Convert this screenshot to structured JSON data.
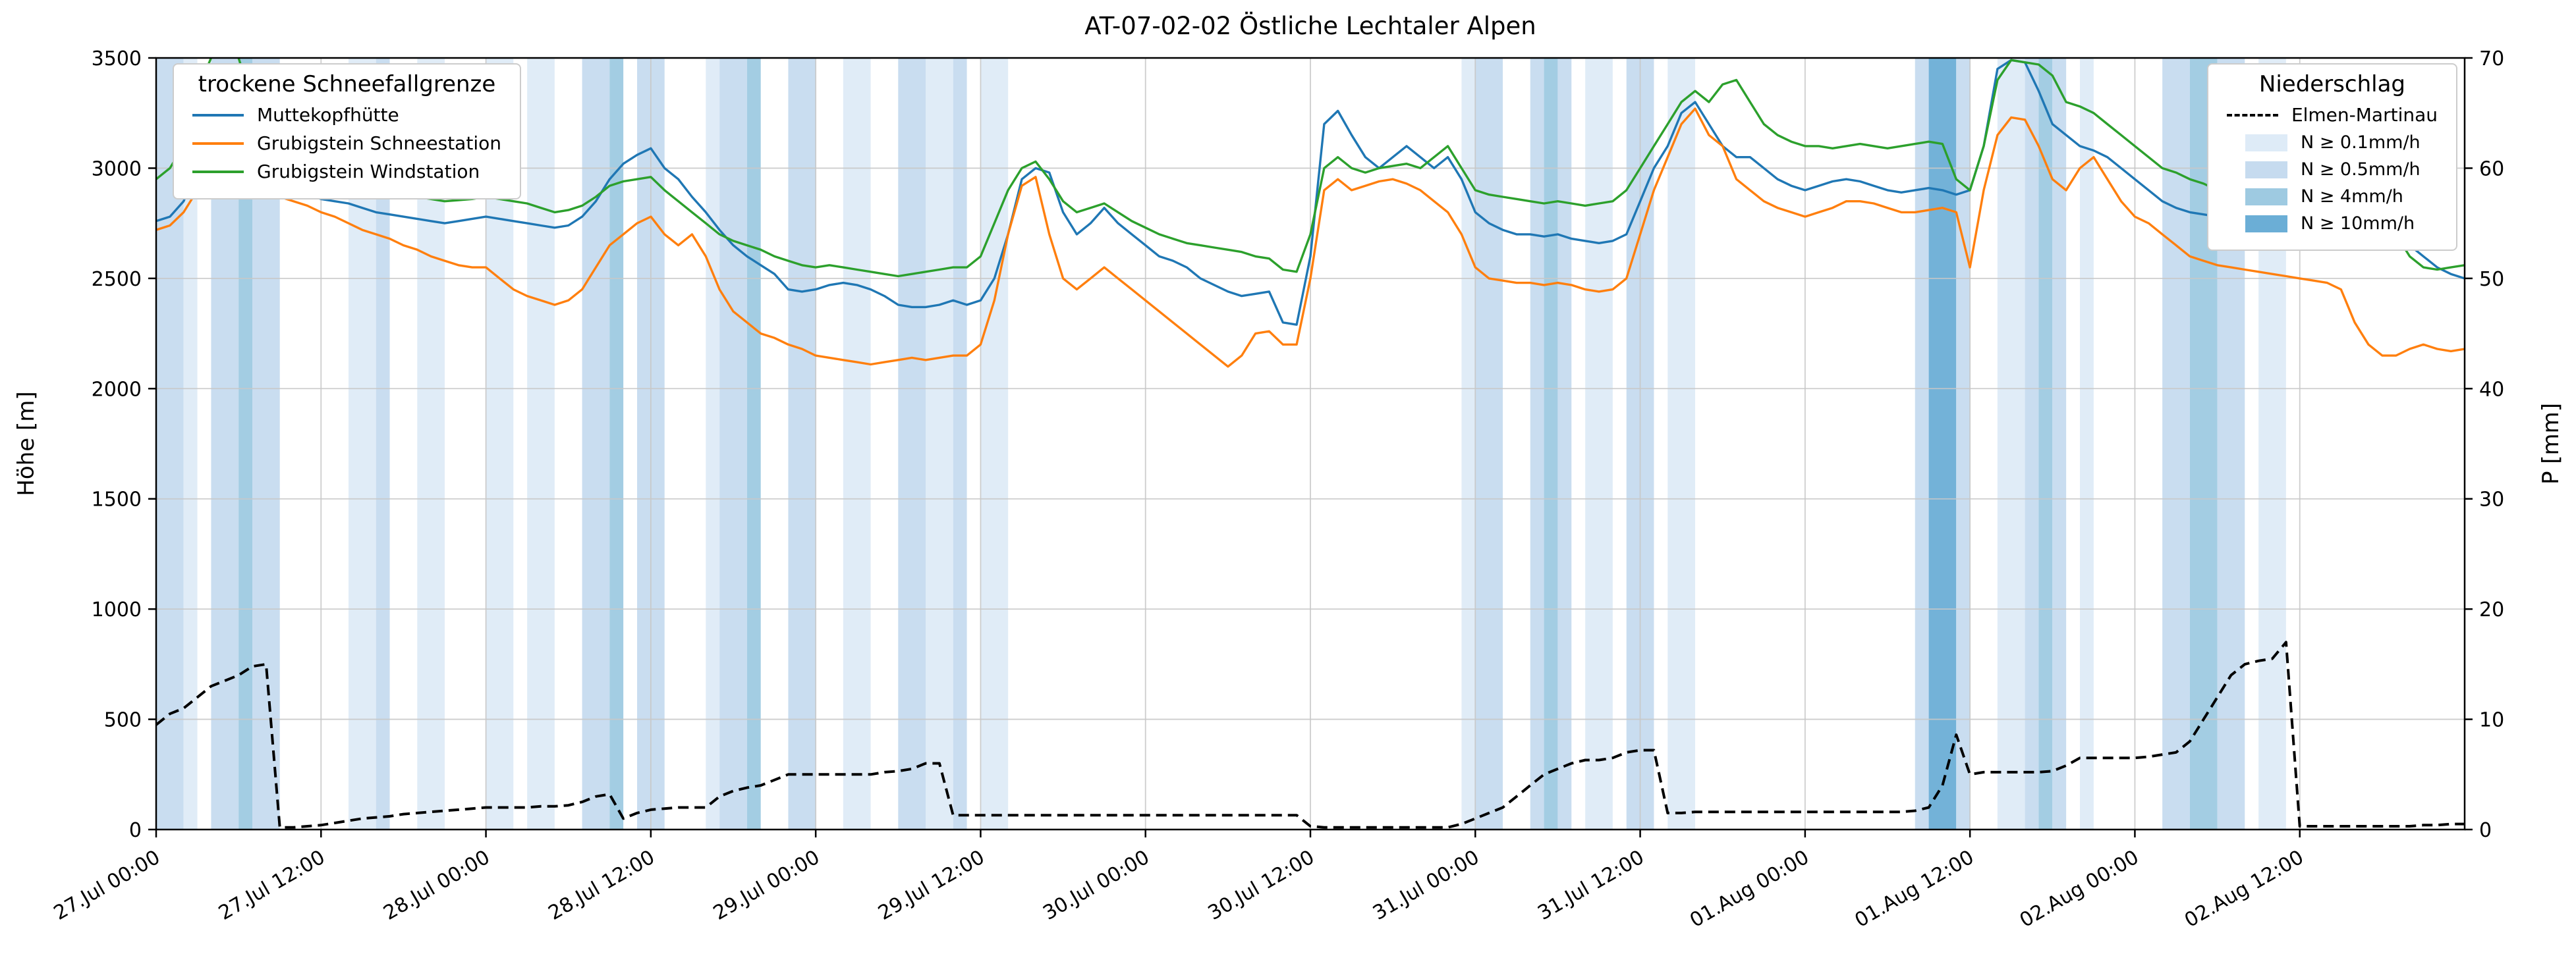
{
  "title": "AT-07-02-02 Östliche Lechtaler Alpen",
  "axes": {
    "y_left_label": "Höhe [m]",
    "y_right_label": "P [mm]"
  },
  "legend_left": {
    "title": "trockene Schneefallgrenze",
    "items": [
      {
        "label": "Muttekopfhütte",
        "color": "#1f77b4"
      },
      {
        "label": "Grubigstein Schneestation",
        "color": "#ff7f0e"
      },
      {
        "label": "Grubigstein Windstation",
        "color": "#2ca02c"
      }
    ]
  },
  "legend_right": {
    "title": "Niederschlag",
    "line_item": {
      "label": "Elmen-Martinau",
      "color": "#000000"
    },
    "band_items": [
      {
        "label": "N ≥ 0.1mm/h",
        "color": "#deebf7"
      },
      {
        "label": "N ≥ 0.5mm/h",
        "color": "#c6dbef"
      },
      {
        "label": "N ≥ 4mm/h",
        "color": "#9ecae1"
      },
      {
        "label": "N ≥ 10mm/h",
        "color": "#6baed6"
      }
    ]
  },
  "chart_data": {
    "type": "line",
    "title": "AT-07-02-02 Östliche Lechtaler Alpen",
    "x_unit": "hours since 27 Jul 00:00",
    "x_range": [
      0,
      168
    ],
    "y_left_label": "Höhe [m]",
    "y_left_range": [
      0,
      3500
    ],
    "y_left_ticks": [
      0,
      500,
      1000,
      1500,
      2000,
      2500,
      3000,
      3500
    ],
    "y_right_label": "P [mm]",
    "y_right_range": [
      0,
      70
    ],
    "y_right_ticks": [
      0,
      10,
      20,
      30,
      40,
      50,
      60,
      70
    ],
    "x_ticks_hours": [
      0,
      12,
      24,
      36,
      48,
      60,
      72,
      84,
      96,
      108,
      120,
      132,
      144,
      156
    ],
    "x_tick_labels": [
      "27.Jul 00:00",
      "27.Jul 12:00",
      "28.Jul 00:00",
      "28.Jul 12:00",
      "29.Jul 00:00",
      "29.Jul 12:00",
      "30.Jul 00:00",
      "30.Jul 12:00",
      "31.Jul 00:00",
      "31.Jul 12:00",
      "01.Aug 00:00",
      "01.Aug 12:00",
      "02.Aug 00:00",
      "02.Aug 12:00"
    ],
    "grid": true,
    "series": [
      {
        "name": "Muttekopfhütte",
        "color": "#1f77b4",
        "axis": "left",
        "values": [
          2760,
          2780,
          2850,
          3000,
          3300,
          3460,
          3400,
          3250,
          3050,
          2950,
          2900,
          2880,
          2860,
          2850,
          2840,
          2820,
          2800,
          2790,
          2780,
          2770,
          2760,
          2750,
          2760,
          2770,
          2780,
          2770,
          2760,
          2750,
          2740,
          2730,
          2740,
          2780,
          2850,
          2950,
          3020,
          3060,
          3090,
          3000,
          2950,
          2870,
          2800,
          2720,
          2650,
          2600,
          2560,
          2520,
          2450,
          2440,
          2450,
          2470,
          2480,
          2470,
          2450,
          2420,
          2380,
          2370,
          2370,
          2380,
          2400,
          2380,
          2400,
          2500,
          2700,
          2950,
          3000,
          2980,
          2800,
          2700,
          2750,
          2820,
          2750,
          2700,
          2650,
          2600,
          2580,
          2550,
          2500,
          2470,
          2440,
          2420,
          2430,
          2440,
          2300,
          2290,
          2600,
          3200,
          3260,
          3150,
          3050,
          3000,
          3050,
          3100,
          3050,
          3000,
          3050,
          2950,
          2800,
          2750,
          2720,
          2700,
          2700,
          2690,
          2700,
          2680,
          2670,
          2660,
          2670,
          2700,
          2850,
          3000,
          3100,
          3250,
          3300,
          3200,
          3100,
          3050,
          3050,
          3000,
          2950,
          2920,
          2900,
          2920,
          2940,
          2950,
          2940,
          2920,
          2900,
          2890,
          2900,
          2910,
          2900,
          2880,
          2900,
          3100,
          3450,
          3490,
          3480,
          3350,
          3200,
          3150,
          3100,
          3080,
          3050,
          3000,
          2950,
          2900,
          2850,
          2820,
          2800,
          2790,
          2780,
          2760,
          2750,
          2740,
          2750,
          2760,
          2750,
          2740,
          2730,
          2730,
          2740,
          2730,
          2720,
          2700,
          2650,
          2600,
          2550,
          2520,
          2500
        ]
      },
      {
        "name": "Grubigstein Schneestation",
        "color": "#ff7f0e",
        "axis": "left",
        "values": [
          2720,
          2740,
          2800,
          2900,
          2980,
          3050,
          3000,
          2950,
          2900,
          2870,
          2850,
          2830,
          2800,
          2780,
          2750,
          2720,
          2700,
          2680,
          2650,
          2630,
          2600,
          2580,
          2560,
          2550,
          2550,
          2500,
          2450,
          2420,
          2400,
          2380,
          2400,
          2450,
          2550,
          2650,
          2700,
          2750,
          2780,
          2700,
          2650,
          2700,
          2600,
          2450,
          2350,
          2300,
          2250,
          2230,
          2200,
          2180,
          2150,
          2140,
          2130,
          2120,
          2110,
          2120,
          2130,
          2140,
          2130,
          2140,
          2150,
          2150,
          2200,
          2400,
          2700,
          2920,
          2960,
          2700,
          2500,
          2450,
          2500,
          2550,
          2500,
          2450,
          2400,
          2350,
          2300,
          2250,
          2200,
          2150,
          2100,
          2150,
          2250,
          2260,
          2200,
          2200,
          2500,
          2900,
          2950,
          2900,
          2920,
          2940,
          2950,
          2930,
          2900,
          2850,
          2800,
          2700,
          2550,
          2500,
          2490,
          2480,
          2480,
          2470,
          2480,
          2470,
          2450,
          2440,
          2450,
          2500,
          2700,
          2900,
          3050,
          3200,
          3270,
          3150,
          3100,
          2950,
          2900,
          2850,
          2820,
          2800,
          2780,
          2800,
          2820,
          2850,
          2850,
          2840,
          2820,
          2800,
          2800,
          2810,
          2820,
          2800,
          2550,
          2900,
          3150,
          3230,
          3220,
          3100,
          2950,
          2900,
          3000,
          3050,
          2950,
          2850,
          2780,
          2750,
          2700,
          2650,
          2600,
          2580,
          2560,
          2550,
          2540,
          2530,
          2520,
          2510,
          2500,
          2490,
          2480,
          2450,
          2300,
          2200,
          2150,
          2150,
          2180,
          2200,
          2180,
          2170,
          2180
        ]
      },
      {
        "name": "Grubigstein Windstation",
        "color": "#2ca02c",
        "axis": "left",
        "values": [
          2950,
          3000,
          3100,
          3350,
          3500,
          3550,
          3500,
          3300,
          3100,
          3020,
          2980,
          2960,
          2950,
          2940,
          2930,
          2920,
          2900,
          2890,
          2880,
          2870,
          2860,
          2850,
          2855,
          2860,
          2870,
          2860,
          2850,
          2840,
          2820,
          2800,
          2810,
          2830,
          2870,
          2920,
          2940,
          2950,
          2960,
          2900,
          2850,
          2800,
          2750,
          2700,
          2670,
          2650,
          2630,
          2600,
          2580,
          2560,
          2550,
          2560,
          2550,
          2540,
          2530,
          2520,
          2510,
          2520,
          2530,
          2540,
          2550,
          2550,
          2600,
          2750,
          2900,
          3000,
          3030,
          2950,
          2850,
          2800,
          2820,
          2840,
          2800,
          2760,
          2730,
          2700,
          2680,
          2660,
          2650,
          2640,
          2630,
          2620,
          2600,
          2590,
          2540,
          2530,
          2700,
          3000,
          3050,
          3000,
          2980,
          3000,
          3010,
          3020,
          3000,
          3050,
          3100,
          3000,
          2900,
          2880,
          2870,
          2860,
          2850,
          2840,
          2850,
          2840,
          2830,
          2840,
          2850,
          2900,
          3000,
          3100,
          3200,
          3300,
          3350,
          3300,
          3380,
          3400,
          3300,
          3200,
          3150,
          3120,
          3100,
          3100,
          3090,
          3100,
          3110,
          3100,
          3090,
          3100,
          3110,
          3120,
          3110,
          2950,
          2900,
          3100,
          3400,
          3490,
          3480,
          3470,
          3420,
          3300,
          3280,
          3250,
          3200,
          3150,
          3100,
          3050,
          3000,
          2980,
          2950,
          2930,
          2900,
          2880,
          2860,
          2850,
          2840,
          2850,
          2850,
          2840,
          2830,
          2820,
          2810,
          2800,
          2780,
          2700,
          2600,
          2550,
          2540,
          2550,
          2560
        ]
      }
    ],
    "precip_line": {
      "name": "Elmen-Martinau",
      "color": "#000000",
      "style": "dashed",
      "axis": "right",
      "values": [
        9.5,
        10.5,
        11,
        12,
        13,
        13.5,
        14,
        14.8,
        15,
        0.2,
        0.2,
        0.3,
        0.4,
        0.6,
        0.8,
        1.0,
        1.1,
        1.2,
        1.4,
        1.5,
        1.6,
        1.7,
        1.8,
        1.9,
        2.0,
        2.0,
        2.0,
        2.0,
        2.1,
        2.1,
        2.2,
        2.5,
        3.0,
        3.2,
        1.0,
        1.5,
        1.8,
        1.9,
        2.0,
        2.0,
        2.0,
        3.0,
        3.5,
        3.8,
        4.0,
        4.5,
        5.0,
        5.0,
        5.0,
        5.0,
        5.0,
        5.0,
        5.0,
        5.2,
        5.3,
        5.5,
        6.0,
        6.0,
        1.3,
        1.3,
        1.3,
        1.3,
        1.3,
        1.3,
        1.3,
        1.3,
        1.3,
        1.3,
        1.3,
        1.3,
        1.3,
        1.3,
        1.3,
        1.3,
        1.3,
        1.3,
        1.3,
        1.3,
        1.3,
        1.3,
        1.3,
        1.3,
        1.3,
        1.3,
        0.3,
        0.2,
        0.2,
        0.2,
        0.2,
        0.2,
        0.2,
        0.2,
        0.2,
        0.2,
        0.2,
        0.5,
        1.0,
        1.5,
        2.0,
        3.0,
        4.0,
        5.0,
        5.5,
        6.0,
        6.3,
        6.3,
        6.5,
        7.0,
        7.2,
        7.2,
        1.5,
        1.5,
        1.6,
        1.6,
        1.6,
        1.6,
        1.6,
        1.6,
        1.6,
        1.6,
        1.6,
        1.6,
        1.6,
        1.6,
        1.6,
        1.6,
        1.6,
        1.6,
        1.7,
        2.0,
        4.0,
        8.6,
        5.0,
        5.2,
        5.2,
        5.2,
        5.2,
        5.2,
        5.3,
        5.8,
        6.5,
        6.5,
        6.5,
        6.5,
        6.5,
        6.6,
        6.8,
        7.0,
        8.0,
        10.0,
        12.0,
        14.0,
        15.0,
        15.3,
        15.5,
        17.0,
        0.3,
        0.3,
        0.3,
        0.3,
        0.3,
        0.3,
        0.3,
        0.3,
        0.3,
        0.4,
        0.4,
        0.5,
        0.5
      ]
    },
    "band_levels": [
      {
        "label": "N ≥ 0.1mm/h",
        "color": "#deebf7"
      },
      {
        "label": "N ≥ 0.5mm/h",
        "color": "#c6dbef"
      },
      {
        "label": "N ≥ 4mm/h",
        "color": "#9ecae1"
      },
      {
        "label": "N ≥ 10mm/h",
        "color": "#6baed6"
      }
    ],
    "precip_bands": [
      {
        "start": 0,
        "end": 2,
        "level": 2
      },
      {
        "start": 2,
        "end": 3,
        "level": 1
      },
      {
        "start": 4,
        "end": 6,
        "level": 2
      },
      {
        "start": 6,
        "end": 7,
        "level": 3
      },
      {
        "start": 7,
        "end": 9,
        "level": 2
      },
      {
        "start": 14,
        "end": 16,
        "level": 1
      },
      {
        "start": 16,
        "end": 17,
        "level": 2
      },
      {
        "start": 19,
        "end": 21,
        "level": 1
      },
      {
        "start": 24,
        "end": 26,
        "level": 1
      },
      {
        "start": 27,
        "end": 29,
        "level": 1
      },
      {
        "start": 31,
        "end": 33,
        "level": 2
      },
      {
        "start": 33,
        "end": 34,
        "level": 3
      },
      {
        "start": 35,
        "end": 37,
        "level": 2
      },
      {
        "start": 40,
        "end": 41,
        "level": 1
      },
      {
        "start": 41,
        "end": 43,
        "level": 2
      },
      {
        "start": 43,
        "end": 44,
        "level": 3
      },
      {
        "start": 46,
        "end": 48,
        "level": 2
      },
      {
        "start": 50,
        "end": 52,
        "level": 1
      },
      {
        "start": 54,
        "end": 56,
        "level": 2
      },
      {
        "start": 56,
        "end": 58,
        "level": 1
      },
      {
        "start": 58,
        "end": 59,
        "level": 2
      },
      {
        "start": 60,
        "end": 62,
        "level": 1
      },
      {
        "start": 95,
        "end": 96,
        "level": 1
      },
      {
        "start": 96,
        "end": 98,
        "level": 2
      },
      {
        "start": 100,
        "end": 101,
        "level": 2
      },
      {
        "start": 101,
        "end": 102,
        "level": 3
      },
      {
        "start": 102,
        "end": 103,
        "level": 2
      },
      {
        "start": 104,
        "end": 106,
        "level": 1
      },
      {
        "start": 107,
        "end": 109,
        "level": 2
      },
      {
        "start": 110,
        "end": 112,
        "level": 1
      },
      {
        "start": 128,
        "end": 129,
        "level": 2
      },
      {
        "start": 129,
        "end": 131,
        "level": 4
      },
      {
        "start": 131,
        "end": 132,
        "level": 2
      },
      {
        "start": 134,
        "end": 136,
        "level": 1
      },
      {
        "start": 136,
        "end": 137,
        "level": 2
      },
      {
        "start": 137,
        "end": 138,
        "level": 3
      },
      {
        "start": 138,
        "end": 139,
        "level": 2
      },
      {
        "start": 140,
        "end": 141,
        "level": 1
      },
      {
        "start": 146,
        "end": 148,
        "level": 2
      },
      {
        "start": 148,
        "end": 150,
        "level": 3
      },
      {
        "start": 150,
        "end": 152,
        "level": 2
      },
      {
        "start": 153,
        "end": 155,
        "level": 1
      }
    ]
  }
}
